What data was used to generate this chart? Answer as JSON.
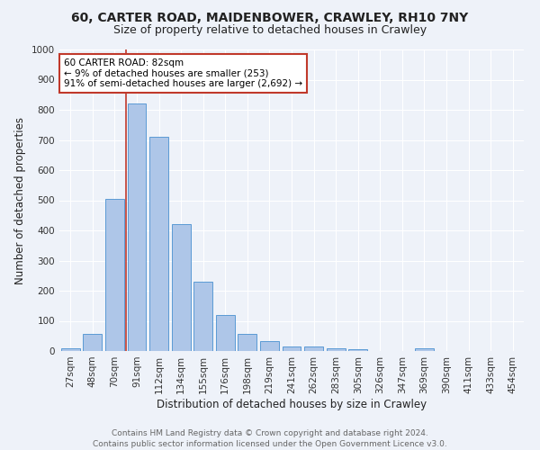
{
  "title1": "60, CARTER ROAD, MAIDENBOWER, CRAWLEY, RH10 7NY",
  "title2": "Size of property relative to detached houses in Crawley",
  "xlabel": "Distribution of detached houses by size in Crawley",
  "ylabel": "Number of detached properties",
  "categories": [
    "27sqm",
    "48sqm",
    "70sqm",
    "91sqm",
    "112sqm",
    "134sqm",
    "155sqm",
    "176sqm",
    "198sqm",
    "219sqm",
    "241sqm",
    "262sqm",
    "283sqm",
    "305sqm",
    "326sqm",
    "347sqm",
    "369sqm",
    "390sqm",
    "411sqm",
    "433sqm",
    "454sqm"
  ],
  "values": [
    8,
    58,
    503,
    820,
    710,
    420,
    230,
    118,
    57,
    32,
    15,
    14,
    10,
    7,
    0,
    0,
    8,
    0,
    0,
    0,
    0
  ],
  "bar_color": "#aec6e8",
  "bar_edge_color": "#5b9bd5",
  "vline_color": "#c0392b",
  "vline_pos": 2.5,
  "annotation_text": "60 CARTER ROAD: 82sqm\n← 9% of detached houses are smaller (253)\n91% of semi-detached houses are larger (2,692) →",
  "annotation_box_color": "#ffffff",
  "annotation_box_edge": "#c0392b",
  "ylim": [
    0,
    1000
  ],
  "yticks": [
    0,
    100,
    200,
    300,
    400,
    500,
    600,
    700,
    800,
    900,
    1000
  ],
  "background_color": "#eef2f9",
  "grid_color": "#ffffff",
  "footer": "Contains HM Land Registry data © Crown copyright and database right 2024.\nContains public sector information licensed under the Open Government Licence v3.0.",
  "title1_fontsize": 10,
  "title2_fontsize": 9,
  "xlabel_fontsize": 8.5,
  "ylabel_fontsize": 8.5,
  "tick_fontsize": 7.5,
  "footer_fontsize": 6.5
}
